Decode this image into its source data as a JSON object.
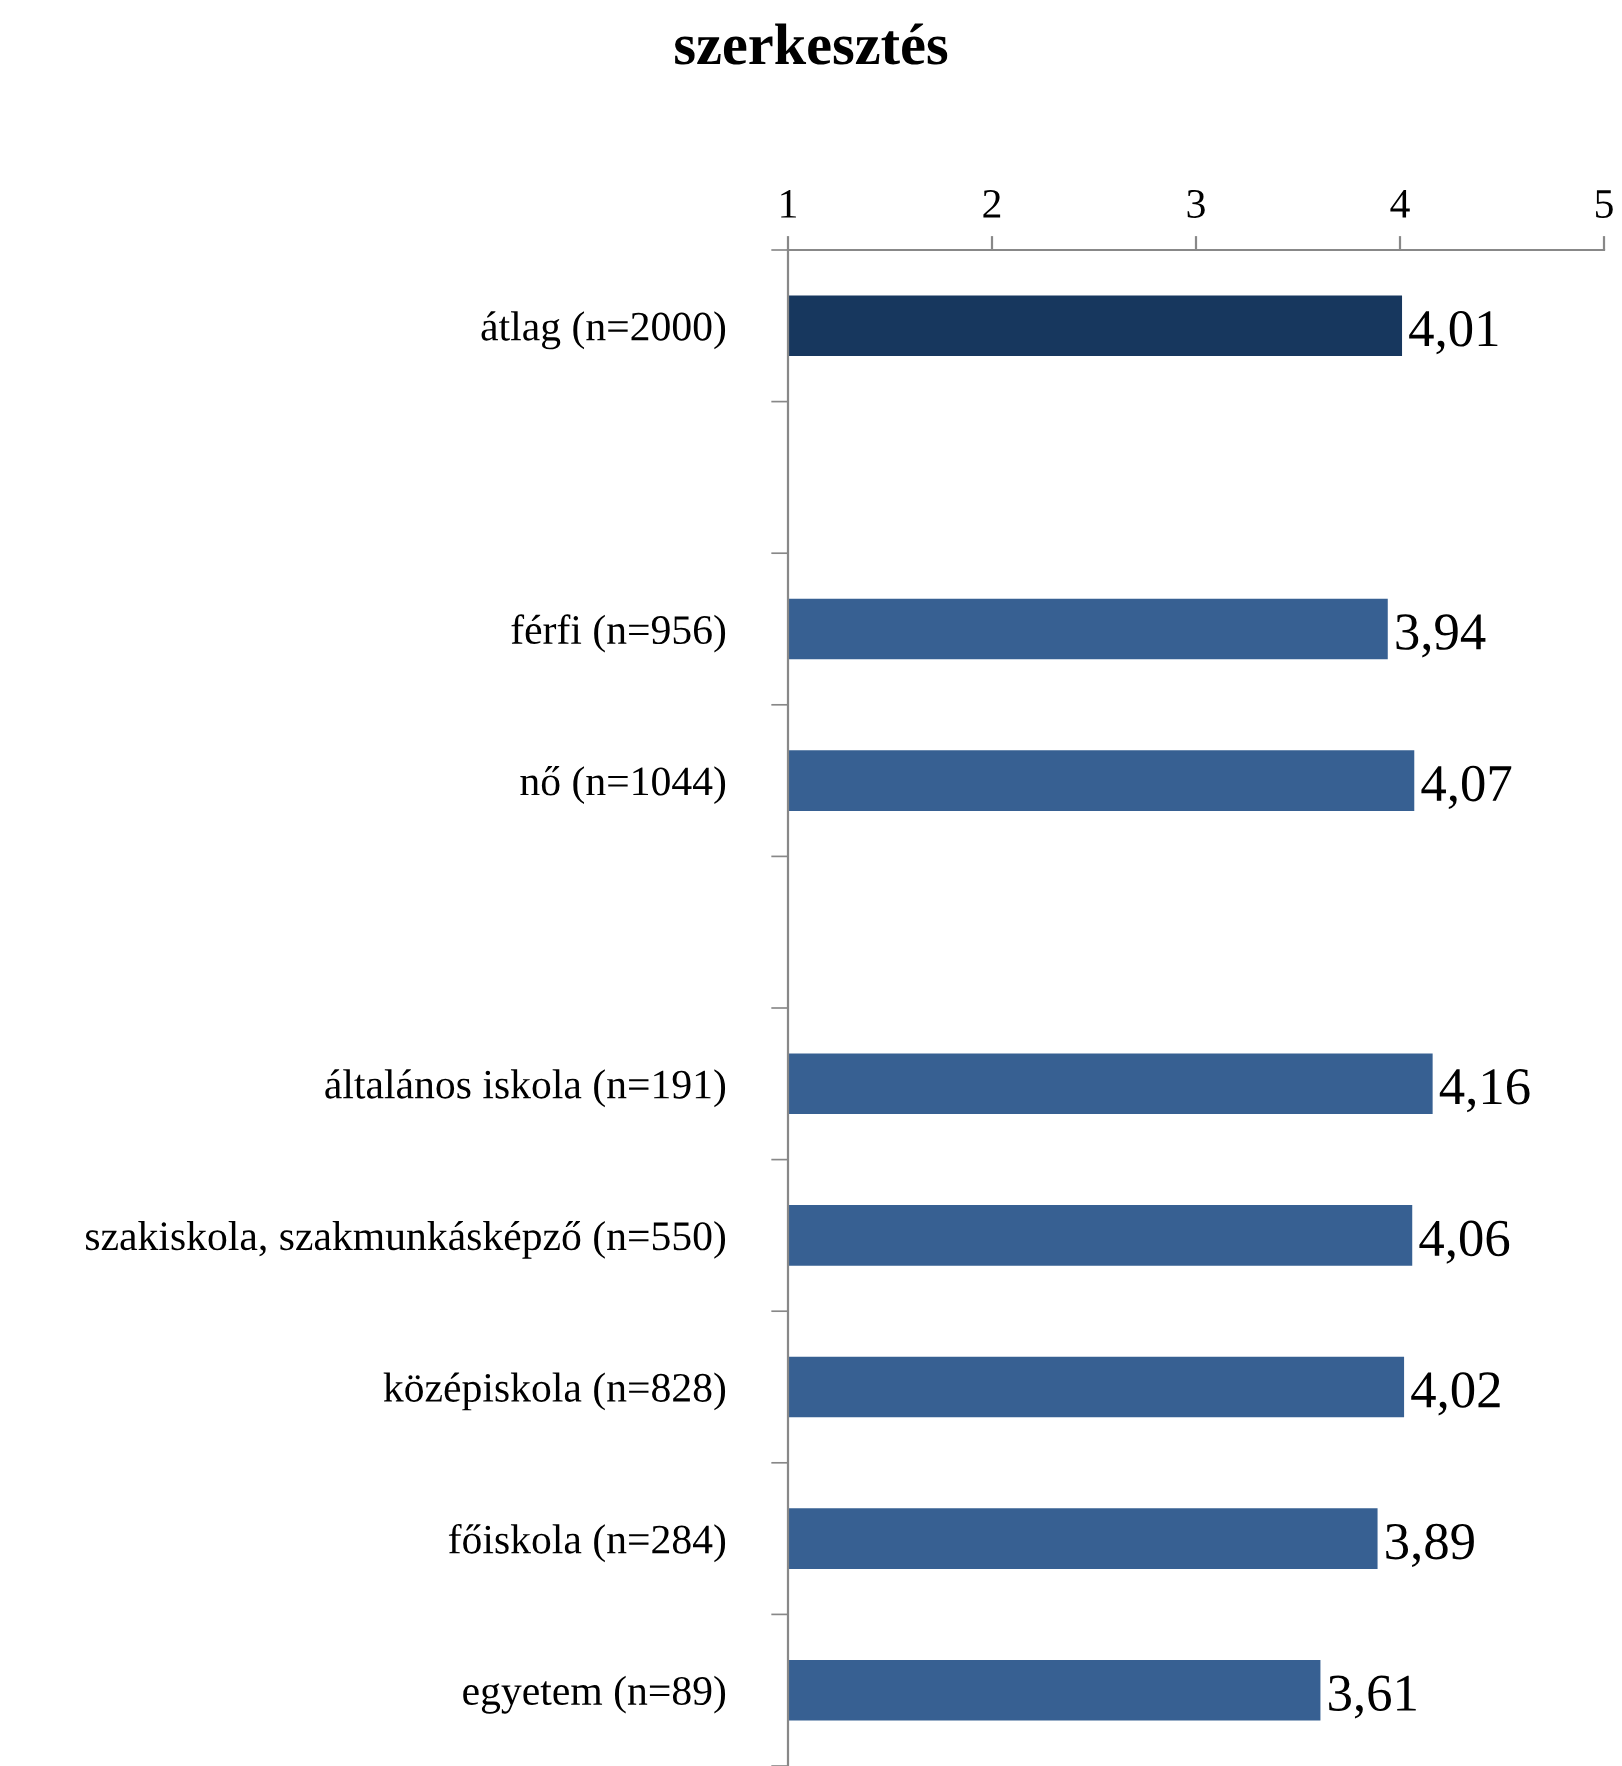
{
  "chart_data": {
    "type": "bar",
    "orientation": "horizontal",
    "title": "szerkesztés",
    "categories": [
      "átlag (n=2000)",
      null,
      "férfi (n=956)",
      "nő (n=1044)",
      null,
      "általános iskola (n=191)",
      "szakiskola, szakmunkásképző (n=550)",
      "középiskola (n=828)",
      "főiskola (n=284)",
      "egyetem (n=89)"
    ],
    "values": [
      4.01,
      null,
      3.94,
      4.07,
      null,
      4.16,
      4.06,
      4.02,
      3.89,
      3.61
    ],
    "colors": [
      "#17375e",
      null,
      "#376092",
      "#376092",
      null,
      "#376092",
      "#376092",
      "#376092",
      "#376092",
      "#376092"
    ],
    "value_labels": [
      "4,01",
      null,
      "3,94",
      "4,07",
      null,
      "4,16",
      "4,06",
      "4,02",
      "3,89",
      "3,61"
    ],
    "xlim": [
      1,
      5
    ],
    "xticks": [
      1,
      2,
      3,
      4,
      5
    ],
    "grid": false,
    "legend": false
  }
}
